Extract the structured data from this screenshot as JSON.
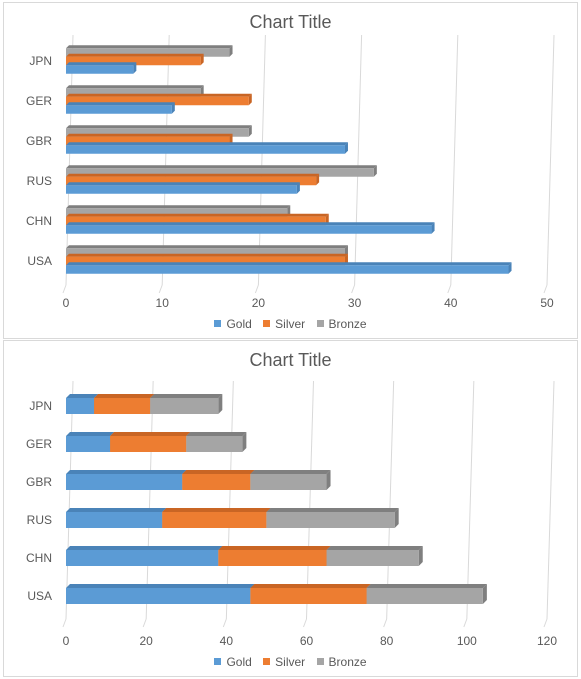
{
  "colors": {
    "gold": "#5b9bd5",
    "silver": "#ed7d31",
    "bronze": "#a5a5a5",
    "gold_top": "#4a83b8",
    "silver_top": "#c96524",
    "bronze_top": "#7f7f7f"
  },
  "chart_data": [
    {
      "type": "bar",
      "orientation": "horizontal",
      "grouping": "clustered",
      "title": "Chart Title",
      "categories": [
        "USA",
        "CHN",
        "RUS",
        "GBR",
        "GER",
        "JPN"
      ],
      "series": [
        {
          "name": "Gold",
          "values": [
            46,
            38,
            24,
            29,
            11,
            7
          ]
        },
        {
          "name": "Silver",
          "values": [
            29,
            27,
            26,
            17,
            19,
            14
          ]
        },
        {
          "name": "Bronze",
          "values": [
            29,
            23,
            32,
            19,
            14,
            17
          ]
        }
      ],
      "xlim": [
        0,
        50
      ],
      "xticks": [
        0,
        10,
        20,
        30,
        40,
        50
      ],
      "grid": true,
      "legend_position": "bottom"
    },
    {
      "type": "bar",
      "orientation": "horizontal",
      "grouping": "stacked",
      "title": "Chart Title",
      "categories": [
        "USA",
        "CHN",
        "RUS",
        "GBR",
        "GER",
        "JPN"
      ],
      "series": [
        {
          "name": "Gold",
          "values": [
            46,
            38,
            24,
            29,
            11,
            7
          ]
        },
        {
          "name": "Silver",
          "values": [
            29,
            27,
            26,
            17,
            19,
            14
          ]
        },
        {
          "name": "Bronze",
          "values": [
            29,
            23,
            32,
            19,
            14,
            17
          ]
        }
      ],
      "xlim": [
        0,
        120
      ],
      "xticks": [
        0,
        20,
        40,
        60,
        80,
        100,
        120
      ],
      "grid": true,
      "legend_position": "bottom"
    }
  ]
}
